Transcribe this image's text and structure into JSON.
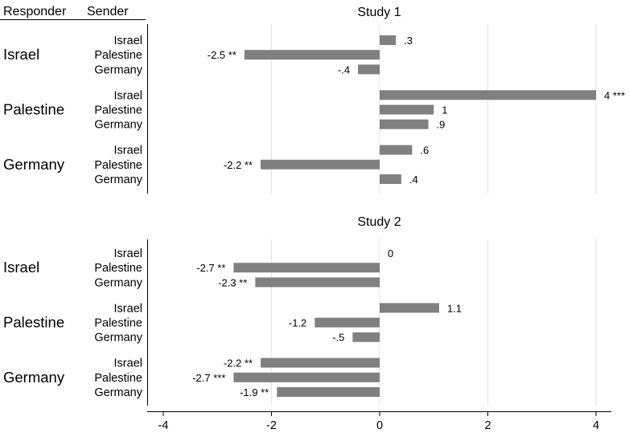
{
  "header": {
    "responder": "Responder",
    "sender": "Sender"
  },
  "colors": {
    "bar": "#808080",
    "grid": "#e3e3e3",
    "axis": "#000000",
    "background": "#ffffff"
  },
  "chart_data": {
    "type": "bar",
    "orientation": "horizontal",
    "xlim": [
      -4,
      4
    ],
    "xticks": [
      -4,
      -2,
      0,
      2,
      4
    ],
    "xtick_labels": [
      "-4",
      "-2",
      "0",
      "2",
      "4"
    ],
    "grid": true,
    "panels": [
      {
        "title": "Study 1",
        "groups": [
          {
            "responder": "Israel",
            "bars": [
              {
                "sender": "Israel",
                "value": 0.3,
                "label": ".3"
              },
              {
                "sender": "Palestine",
                "value": -2.5,
                "label": "-2.5 **"
              },
              {
                "sender": "Germany",
                "value": -0.4,
                "label": "-.4"
              }
            ]
          },
          {
            "responder": "Palestine",
            "bars": [
              {
                "sender": "Israel",
                "value": 4,
                "label": "4 ***"
              },
              {
                "sender": "Palestine",
                "value": 1,
                "label": "1"
              },
              {
                "sender": "Germany",
                "value": 0.9,
                "label": ".9"
              }
            ]
          },
          {
            "responder": "Germany",
            "bars": [
              {
                "sender": "Israel",
                "value": 0.6,
                "label": ".6"
              },
              {
                "sender": "Palestine",
                "value": -2.2,
                "label": "-2.2 **"
              },
              {
                "sender": "Germany",
                "value": 0.4,
                "label": ".4"
              }
            ]
          }
        ]
      },
      {
        "title": "Study 2",
        "groups": [
          {
            "responder": "Israel",
            "bars": [
              {
                "sender": "Israel",
                "value": 0,
                "label": "0"
              },
              {
                "sender": "Palestine",
                "value": -2.7,
                "label": "-2.7 **"
              },
              {
                "sender": "Germany",
                "value": -2.3,
                "label": "-2.3 **"
              }
            ]
          },
          {
            "responder": "Palestine",
            "bars": [
              {
                "sender": "Israel",
                "value": 1.1,
                "label": "1.1"
              },
              {
                "sender": "Palestine",
                "value": -1.2,
                "label": "-1.2"
              },
              {
                "sender": "Germany",
                "value": -0.5,
                "label": "-.5"
              }
            ]
          },
          {
            "responder": "Germany",
            "bars": [
              {
                "sender": "Israel",
                "value": -2.2,
                "label": "-2.2 **"
              },
              {
                "sender": "Palestine",
                "value": -2.7,
                "label": "-2.7 ***"
              },
              {
                "sender": "Germany",
                "value": -1.9,
                "label": "-1.9 **"
              }
            ]
          }
        ]
      }
    ]
  }
}
